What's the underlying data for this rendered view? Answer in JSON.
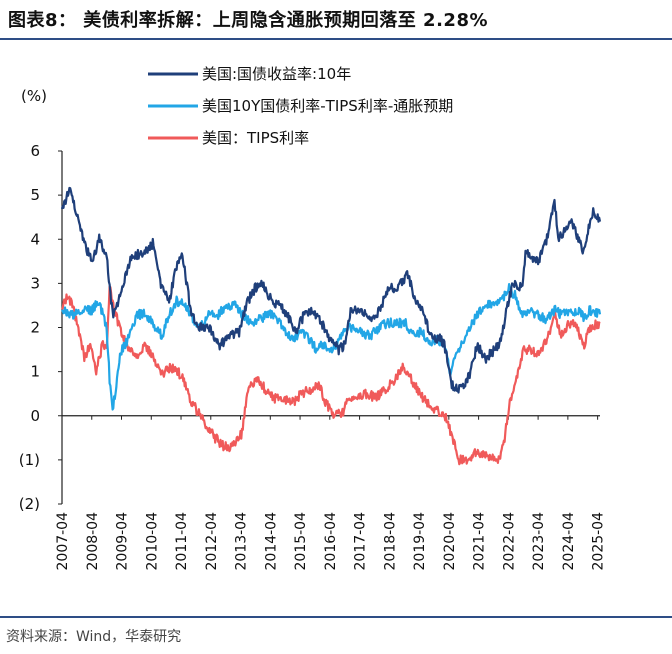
{
  "header": {
    "title": "图表8： 美债利率拆解：上周隐含通胀预期回落至 2.28%"
  },
  "footer": {
    "source": "资料来源：Wind，华泰研究"
  },
  "chart_data": {
    "type": "line",
    "title": "图表8： 美债利率拆解：上周隐含通胀预期回落至 2.28%",
    "ylabel": "(%)",
    "xlabel": "",
    "ylim": [
      -2,
      6
    ],
    "yticks": [
      6,
      5,
      4,
      3,
      2,
      1,
      0,
      -1,
      -2
    ],
    "ytick_labels": [
      "6",
      "5",
      "4",
      "3",
      "2",
      "1",
      "0",
      "(1)",
      "(2)"
    ],
    "xlim": [
      2007.25,
      2025.33
    ],
    "xticks": [
      "2007-04",
      "2008-04",
      "2009-04",
      "2010-04",
      "2011-04",
      "2012-04",
      "2013-04",
      "2014-04",
      "2015-04",
      "2016-04",
      "2017-04",
      "2018-04",
      "2019-04",
      "2020-04",
      "2021-04",
      "2022-04",
      "2023-04",
      "2024-04",
      "2025-04"
    ],
    "legend": "top-center",
    "grid": false,
    "series": [
      {
        "name": "美国:国债收益率:10年",
        "color": "#1f3f7a",
        "x": [
          2007.25,
          2007.5,
          2007.75,
          2008.0,
          2008.25,
          2008.5,
          2008.75,
          2008.95,
          2009.15,
          2009.4,
          2009.6,
          2010.0,
          2010.3,
          2010.6,
          2010.85,
          2011.1,
          2011.3,
          2011.6,
          2011.8,
          2012.2,
          2012.55,
          2012.9,
          2013.2,
          2013.5,
          2013.75,
          2014.0,
          2014.3,
          2014.6,
          2014.9,
          2015.1,
          2015.4,
          2015.6,
          2015.9,
          2016.2,
          2016.55,
          2016.75,
          2016.95,
          2017.3,
          2017.6,
          2017.95,
          2018.2,
          2018.5,
          2018.85,
          2019.1,
          2019.4,
          2019.7,
          2019.95,
          2020.15,
          2020.35,
          2020.6,
          2020.95,
          2021.2,
          2021.5,
          2021.8,
          2022.0,
          2022.2,
          2022.4,
          2022.7,
          2022.85,
          2023.0,
          2023.25,
          2023.5,
          2023.8,
          2023.95,
          2024.15,
          2024.4,
          2024.6,
          2024.8,
          2024.95,
          2025.1,
          2025.33
        ],
        "values": [
          4.7,
          5.1,
          4.6,
          3.9,
          3.5,
          4.0,
          3.6,
          2.3,
          2.6,
          3.2,
          3.6,
          3.7,
          3.9,
          2.9,
          2.6,
          3.4,
          3.6,
          2.3,
          2.0,
          2.0,
          1.6,
          1.8,
          1.9,
          2.6,
          2.9,
          3.0,
          2.6,
          2.5,
          2.2,
          1.9,
          2.3,
          2.4,
          2.2,
          1.8,
          1.5,
          1.6,
          2.4,
          2.4,
          2.2,
          2.4,
          2.9,
          2.9,
          3.2,
          2.7,
          2.3,
          1.7,
          1.8,
          1.5,
          0.7,
          0.6,
          0.9,
          1.6,
          1.3,
          1.5,
          1.7,
          2.4,
          3.0,
          2.9,
          3.8,
          3.6,
          3.5,
          3.9,
          4.8,
          4.0,
          4.2,
          4.4,
          4.0,
          3.7,
          4.3,
          4.6,
          4.4
        ]
      },
      {
        "name": "美国10Y国债利率-TIPS利率-通胀预期",
        "color": "#22a6e6",
        "x": [
          2007.25,
          2007.5,
          2007.75,
          2008.0,
          2008.25,
          2008.5,
          2008.75,
          2008.85,
          2008.95,
          2009.2,
          2009.5,
          2009.8,
          2010.0,
          2010.3,
          2010.6,
          2010.8,
          2011.1,
          2011.4,
          2011.7,
          2011.9,
          2012.2,
          2012.5,
          2012.8,
          2013.1,
          2013.4,
          2013.6,
          2013.9,
          2014.2,
          2014.5,
          2014.8,
          2015.0,
          2015.3,
          2015.5,
          2015.8,
          2016.0,
          2016.2,
          2016.5,
          2016.8,
          2017.0,
          2017.3,
          2017.6,
          2017.9,
          2018.2,
          2018.5,
          2018.8,
          2019.0,
          2019.3,
          2019.6,
          2019.9,
          2020.1,
          2020.3,
          2020.6,
          2020.9,
          2021.2,
          2021.5,
          2021.8,
          2022.0,
          2022.25,
          2022.5,
          2022.7,
          2022.9,
          2023.2,
          2023.5,
          2023.8,
          2024.0,
          2024.3,
          2024.6,
          2024.8,
          2025.0,
          2025.33
        ],
        "values": [
          2.4,
          2.3,
          2.3,
          2.4,
          2.4,
          2.6,
          2.0,
          0.8,
          0.1,
          1.4,
          1.8,
          2.3,
          2.3,
          2.1,
          1.8,
          2.2,
          2.6,
          2.5,
          2.1,
          2.0,
          2.3,
          2.3,
          2.5,
          2.5,
          2.2,
          2.1,
          2.2,
          2.3,
          2.2,
          1.9,
          1.7,
          1.9,
          1.8,
          1.5,
          1.6,
          1.5,
          1.6,
          2.0,
          2.0,
          1.9,
          1.8,
          2.0,
          2.1,
          2.1,
          2.1,
          1.9,
          1.9,
          1.7,
          1.7,
          1.6,
          1.0,
          1.5,
          1.9,
          2.3,
          2.5,
          2.5,
          2.6,
          2.9,
          2.7,
          2.3,
          2.4,
          2.3,
          2.2,
          2.4,
          2.3,
          2.3,
          2.4,
          2.2,
          2.4,
          2.3
        ]
      },
      {
        "name": "美国：TIPS利率",
        "color": "#f05a5a",
        "x": [
          2007.25,
          2007.4,
          2007.6,
          2007.8,
          2008.0,
          2008.2,
          2008.4,
          2008.6,
          2008.75,
          2008.85,
          2009.0,
          2009.2,
          2009.5,
          2009.8,
          2010.0,
          2010.3,
          2010.6,
          2010.9,
          2011.1,
          2011.3,
          2011.6,
          2011.9,
          2012.1,
          2012.4,
          2012.7,
          2012.9,
          2013.1,
          2013.3,
          2013.5,
          2013.8,
          2014.1,
          2014.4,
          2014.7,
          2015.0,
          2015.3,
          2015.6,
          2015.9,
          2016.1,
          2016.4,
          2016.7,
          2016.9,
          2017.2,
          2017.5,
          2017.8,
          2018.1,
          2018.4,
          2018.7,
          2018.9,
          2019.2,
          2019.5,
          2019.8,
          2020.0,
          2020.2,
          2020.4,
          2020.6,
          2020.9,
          2021.2,
          2021.5,
          2021.8,
          2021.95,
          2022.1,
          2022.3,
          2022.5,
          2022.75,
          2023.0,
          2023.3,
          2023.6,
          2023.8,
          2024.0,
          2024.3,
          2024.5,
          2024.8,
          2025.0,
          2025.33
        ],
        "values": [
          2.4,
          2.7,
          2.5,
          2.0,
          1.3,
          1.6,
          1.0,
          1.6,
          1.5,
          3.0,
          2.4,
          2.0,
          1.5,
          1.4,
          1.6,
          1.4,
          0.9,
          1.1,
          1.0,
          0.9,
          0.3,
          0.0,
          -0.2,
          -0.5,
          -0.7,
          -0.7,
          -0.6,
          -0.4,
          0.6,
          0.8,
          0.6,
          0.4,
          0.4,
          0.3,
          0.5,
          0.6,
          0.7,
          0.3,
          0.0,
          0.1,
          0.4,
          0.4,
          0.5,
          0.4,
          0.6,
          0.8,
          1.1,
          0.9,
          0.6,
          0.3,
          0.1,
          0.1,
          -0.1,
          -0.6,
          -1.0,
          -1.0,
          -0.8,
          -0.9,
          -1.0,
          -1.0,
          -0.6,
          0.3,
          0.8,
          1.5,
          1.5,
          1.4,
          1.8,
          2.4,
          1.8,
          2.1,
          2.1,
          1.6,
          2.0,
          2.1
        ]
      }
    ]
  }
}
